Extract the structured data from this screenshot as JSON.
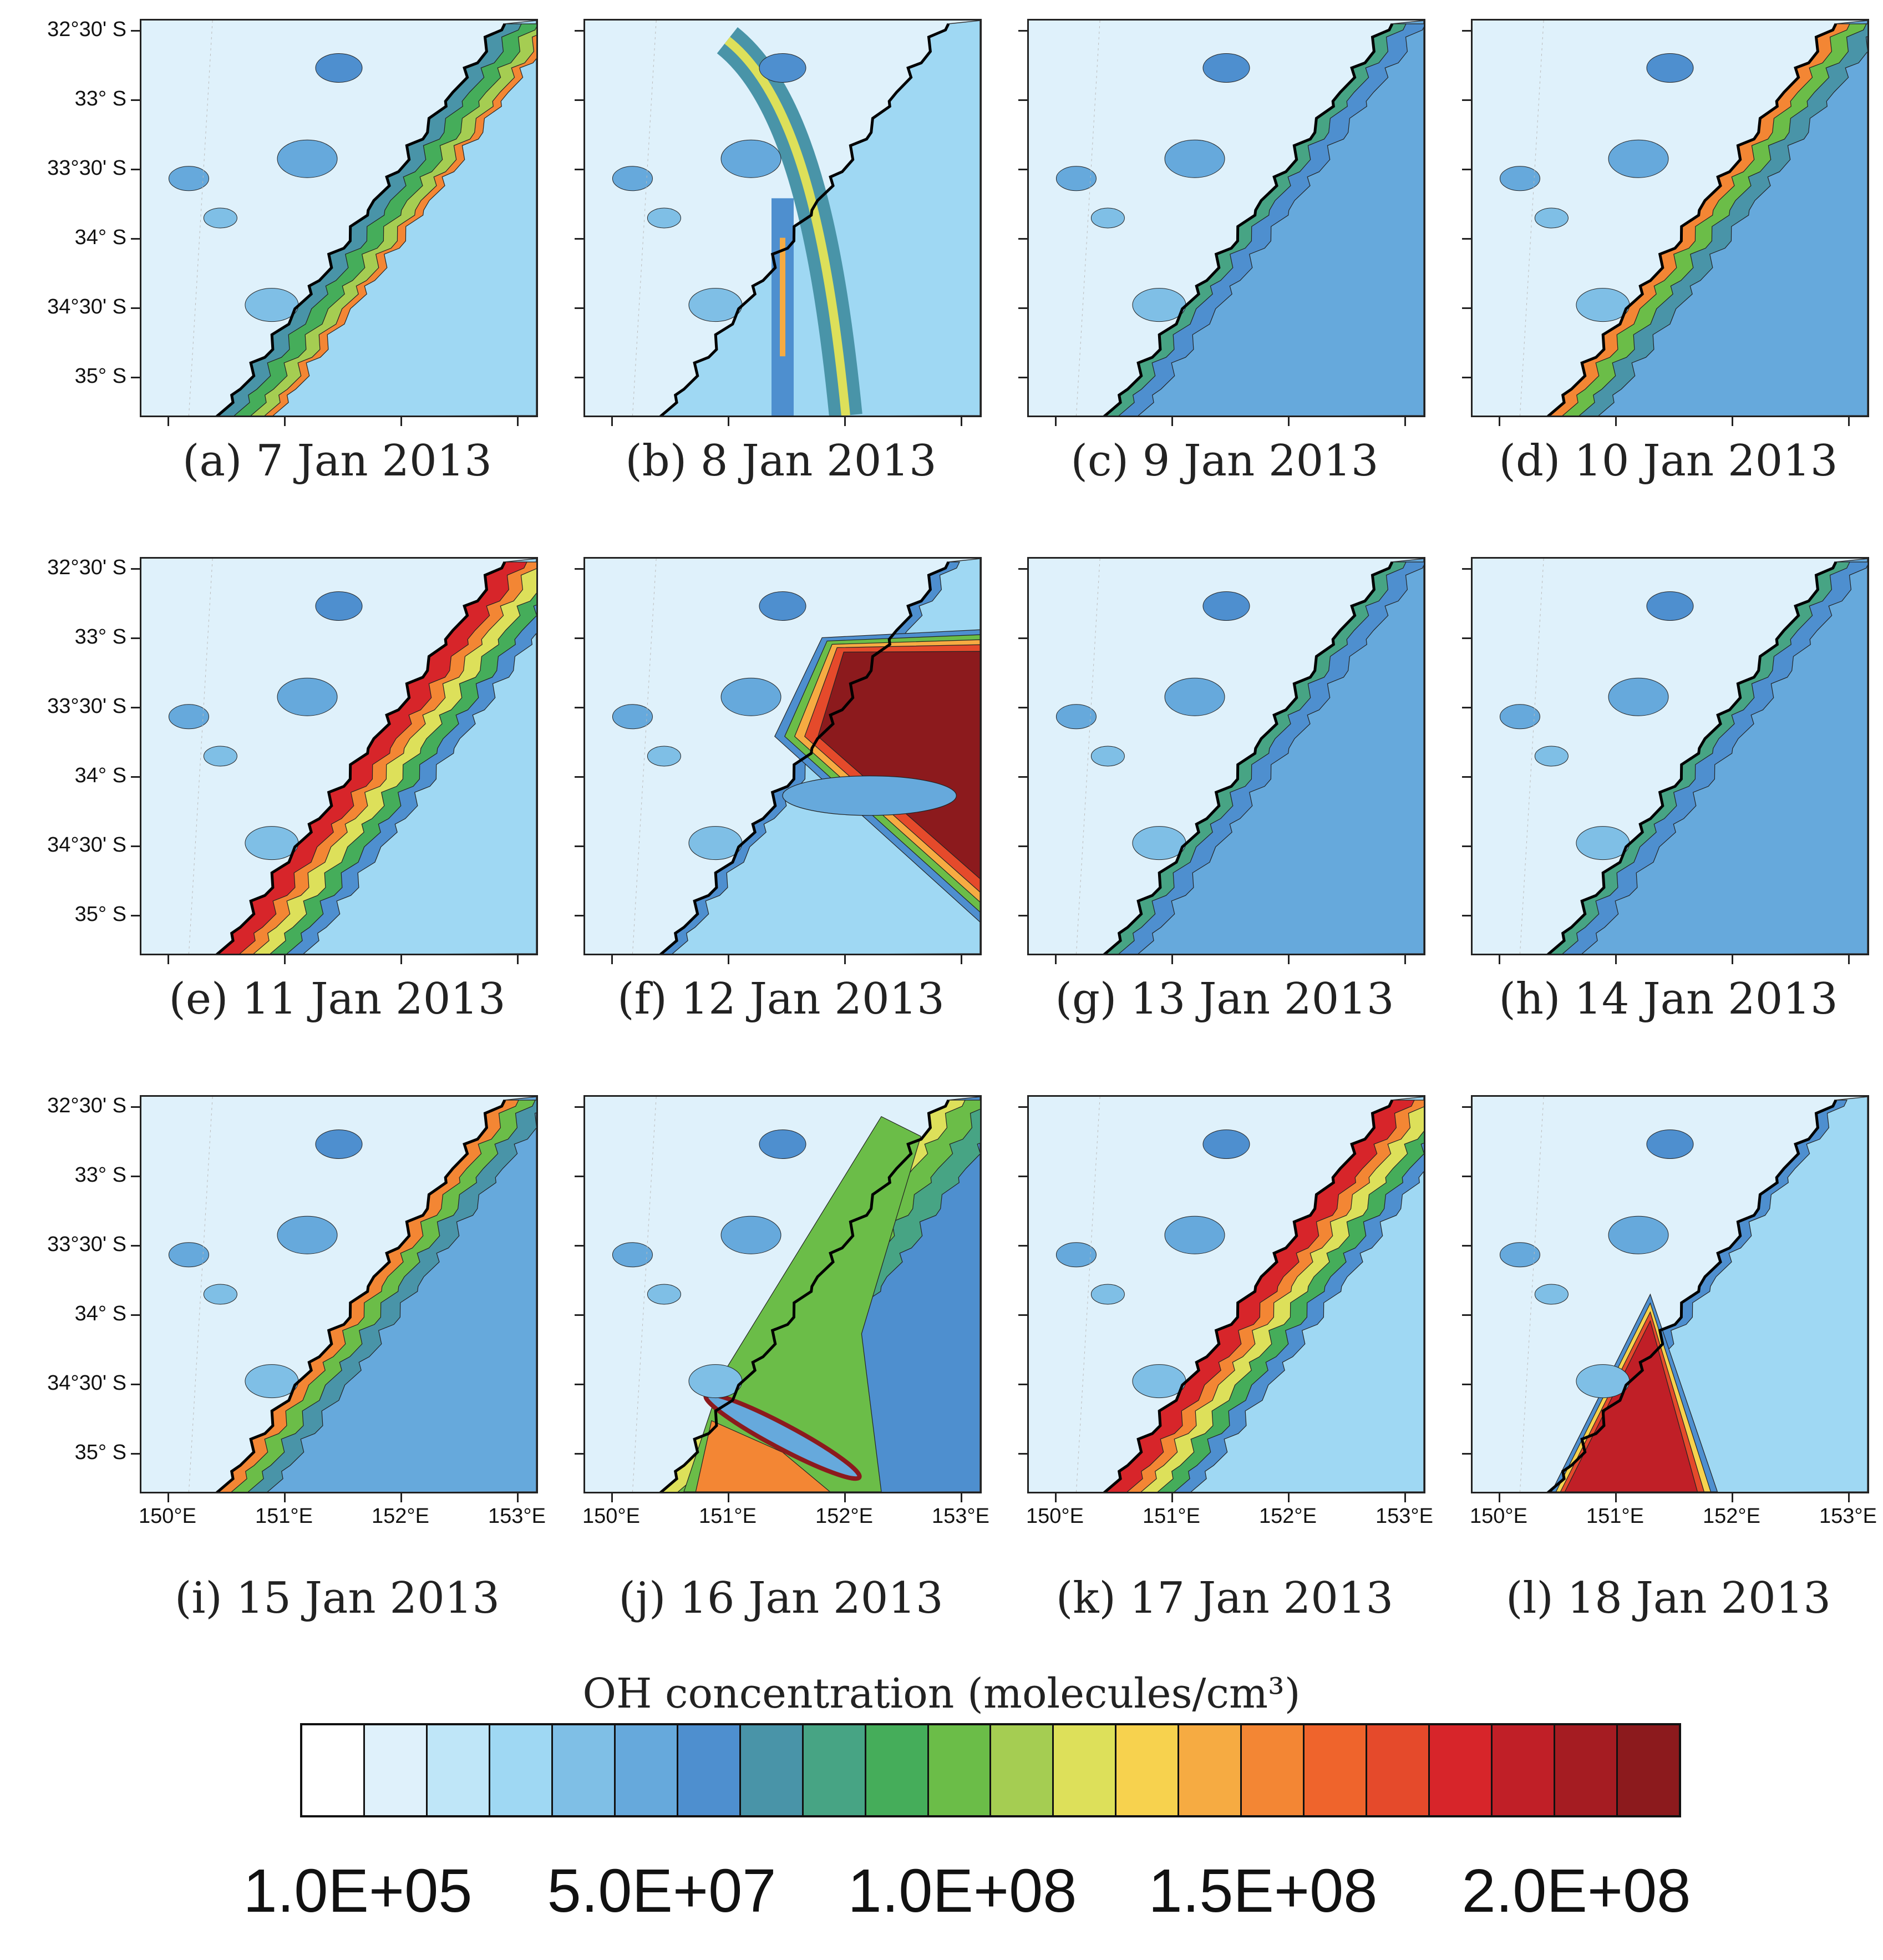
{
  "panels": [
    {
      "id": "a",
      "caption": "(a) 7 Jan 2013",
      "pattern": "coast_south"
    },
    {
      "id": "b",
      "caption": "(b) 8 Jan 2013",
      "pattern": "streaks"
    },
    {
      "id": "c",
      "caption": "(c) 9 Jan 2013",
      "pattern": "ocean_blue"
    },
    {
      "id": "d",
      "caption": "(d) 10 Jan 2013",
      "pattern": "coast_band"
    },
    {
      "id": "e",
      "caption": "(e) 11 Jan 2013",
      "pattern": "coast_south_strong"
    },
    {
      "id": "f",
      "caption": "(f) 12 Jan 2013",
      "pattern": "plume_east"
    },
    {
      "id": "g",
      "caption": "(g) 13 Jan 2013",
      "pattern": "ocean_blue"
    },
    {
      "id": "h",
      "caption": "(h) 14 Jan 2013",
      "pattern": "ocean_blue"
    },
    {
      "id": "i",
      "caption": "(i) 15 Jan 2013",
      "pattern": "coast_band"
    },
    {
      "id": "j",
      "caption": "(j) 16 Jan 2013",
      "pattern": "plume_south"
    },
    {
      "id": "k",
      "caption": "(k) 17 Jan 2013",
      "pattern": "coast_south_strong"
    },
    {
      "id": "l",
      "caption": "(l) 18 Jan 2013",
      "pattern": "plume_wedge"
    }
  ],
  "lat_labels": [
    "32°30' S",
    "33° S",
    "33°30' S",
    "34° S",
    "34°30' S",
    "35° S"
  ],
  "lon_labels": [
    "150°E",
    "151°E",
    "152°E",
    "153°E"
  ],
  "colorbar": {
    "title": "OH concentration (molecules/cm³)",
    "labels": [
      "1.0E+05",
      "5.0E+07",
      "1.0E+08",
      "1.5E+08",
      "2.0E+08"
    ],
    "colors": [
      "#ffffff",
      "#dff1fb",
      "#bfe6f8",
      "#9fd8f3",
      "#7fbfe6",
      "#66a9dc",
      "#4e8fcf",
      "#4994a8",
      "#47a484",
      "#45ad5a",
      "#6bbd48",
      "#a5cd52",
      "#dde05a",
      "#f7d24e",
      "#f6ab42",
      "#f38634",
      "#ef642c",
      "#e54a2b",
      "#d7252a",
      "#c01f27",
      "#a51c22",
      "#8c1a1d"
    ]
  }
}
